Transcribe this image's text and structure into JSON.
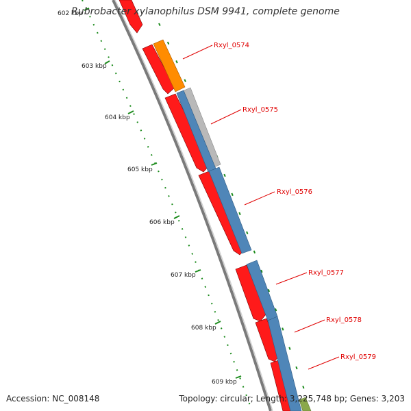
{
  "title": "Rubrobacter xylanophilus DSM 9941, complete genome",
  "footer": {
    "accession": "Accession: NC_008148",
    "stats": "Topology: circular; Length: 3,225,748 bp; Genes: 3,203"
  },
  "ruler": {
    "ticks": [
      "602 kbp",
      "603 kbp",
      "604 kbp",
      "605 kbp",
      "606 kbp",
      "607 kbp",
      "608 kbp",
      "609 kbp"
    ]
  },
  "gene_labels": [
    "Rxyl_0574",
    "Rxyl_0575",
    "Rxyl_0576",
    "Rxyl_0577",
    "Rxyl_0578",
    "Rxyl_0579"
  ],
  "colors": {
    "cds": "#ff0000",
    "orange_feature": "#ff8c00",
    "blue_feature": "#4f86b8",
    "gray_feature": "#b4b4b4",
    "green_feature": "#8aa84a",
    "backbone": "#7a7a7a",
    "ruler": "#1a8a1a",
    "label": "#e00000"
  }
}
